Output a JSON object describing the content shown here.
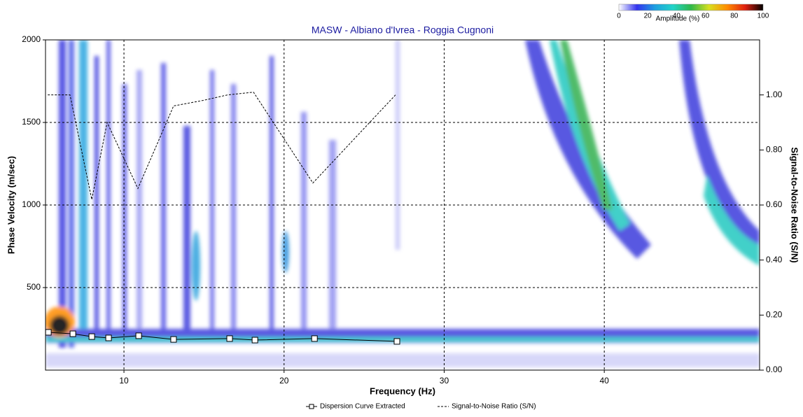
{
  "chart_data": {
    "type": "line",
    "title": "MASW - Albiano d'Ivrea -  Roggia Cugnoni",
    "x_label": "Frequency (Hz)",
    "y_label": "Phase Velocity (m/sec)",
    "y2_label": "Signal-to-Noise Ratio (S/N)",
    "xlim": [
      5.1,
      49.7
    ],
    "xticks": [
      10,
      20,
      30,
      40
    ],
    "ylim": [
      0,
      2000
    ],
    "yticks": [
      500,
      1000,
      1500,
      2000
    ],
    "y2lim": [
      0,
      1.2
    ],
    "y2ticks": [
      {
        "value": 0,
        "label": "0.00"
      },
      {
        "value": 0.2,
        "label": "0.20"
      },
      {
        "value": 0.4,
        "label": "0.40"
      },
      {
        "value": 0.6,
        "label": "0.60"
      },
      {
        "value": 0.8,
        "label": "0.80"
      },
      {
        "value": 1.0,
        "label": "1.00"
      }
    ],
    "grid": true,
    "legend": "bottom",
    "series": [
      {
        "name": "Dispersion Curve Extracted",
        "color": "#000000",
        "marker": "square",
        "x": [
          5.28,
          6.81,
          7.99,
          9.04,
          10.92,
          13.1,
          16.6,
          18.18,
          21.9,
          27.05
        ],
        "values": [
          229,
          220,
          203,
          195,
          208,
          186,
          191,
          182,
          191,
          174
        ]
      },
      {
        "name": "Signal-to-Noise Ratio (S/N)",
        "color": "#000000",
        "dashed": true,
        "axis": "y2",
        "x": [
          5.24,
          6.63,
          7.99,
          8.95,
          10.87,
          13.1,
          14.94,
          16.47,
          18.09,
          21.8,
          26.96
        ],
        "values": [
          1.0,
          1.0,
          0.62,
          0.9,
          0.66,
          0.96,
          0.98,
          1.0,
          1.01,
          0.68,
          1.0
        ]
      }
    ],
    "colorbar": {
      "label": "Amplitude (%)",
      "lim": [
        0,
        100
      ],
      "ticks": [
        0,
        20,
        40,
        60,
        80,
        100
      ],
      "colors": [
        "#ffffff",
        "#3333ee",
        "#1e9fe0",
        "#22d4c8",
        "#2fb84a",
        "#d8e020",
        "#ff8c00",
        "#e02010",
        "#000000"
      ]
    }
  }
}
